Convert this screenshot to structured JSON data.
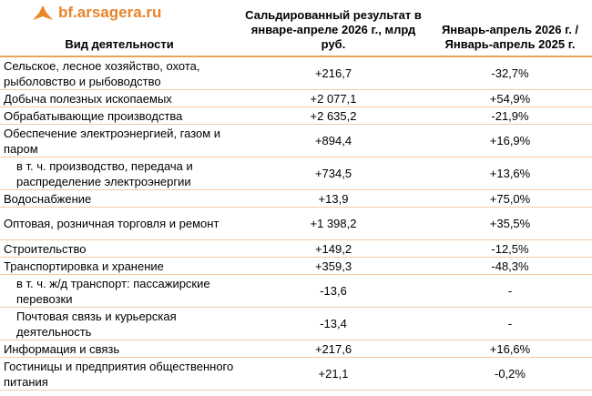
{
  "header": {
    "logo": "bf.arsagera.ru",
    "columns": [
      "Вид деятельности",
      "Сальдированный результат в январе-апреле 2026 г., млрд руб.",
      "Январь-апрель 2026 г. / Январь-апрель 2025 г."
    ]
  },
  "table": {
    "rows": [
      [
        "Сельское, лесное хозяйство, охота, рыболовство и рыбоводство",
        "+216,7",
        "-32,7%"
      ],
      [
        "Добыча полезных ископаемых",
        "+2 077,1",
        "+54,9%"
      ],
      [
        "Обрабатывающие производства",
        "+2 635,2",
        "-21,9%"
      ],
      [
        "Обеспечение электроэнергией, газом и паром",
        "+894,4",
        "+16,9%"
      ],
      [
        "в т. ч. производство, передача и распределение электроэнергии",
        "+734,5",
        "+13,6%"
      ],
      [
        "Водоснабжение",
        "+13,9",
        "+75,0%"
      ],
      [
        "Оптовая, розничная торговля и ремонт",
        "+1 398,2",
        "+35,5%"
      ],
      [
        "Строительство",
        "+149,2",
        "-12,5%"
      ],
      [
        "Транспортировка и хранение",
        "+359,3",
        "-48,3%"
      ],
      [
        "в т. ч. ж/д транспорт: пассажирские перевозки",
        "-13,6",
        "-"
      ],
      [
        "Почтовая связь и курьерская деятельность",
        "-13,4",
        "-"
      ],
      [
        "Информация и связь",
        "+217,6",
        "+16,6%"
      ],
      [
        "Гостиницы и предприятия общественного питания",
        "+21,1",
        "-0,2%"
      ]
    ]
  }
}
